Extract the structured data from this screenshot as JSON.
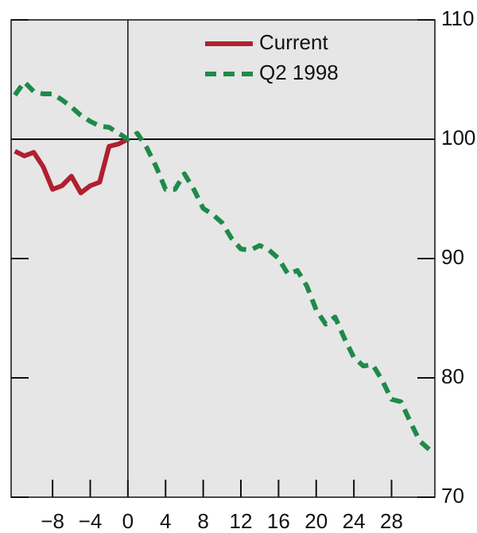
{
  "chart_data": {
    "type": "line",
    "x": [
      -12,
      -11,
      -10,
      -9,
      -8,
      -7,
      -6,
      -5,
      -4,
      -3,
      -2,
      -1,
      0,
      1,
      2,
      3,
      4,
      5,
      6,
      7,
      8,
      9,
      10,
      11,
      12,
      13,
      14,
      15,
      16,
      17,
      18,
      19,
      20,
      21,
      22,
      23,
      24,
      25,
      26,
      27,
      28,
      29,
      30,
      31,
      32
    ],
    "series": [
      {
        "name": "Current",
        "color": "#b0202e",
        "dash": false,
        "values": [
          99.0,
          98.6,
          98.9,
          97.7,
          95.8,
          96.1,
          96.9,
          95.5,
          96.1,
          96.4,
          99.4,
          99.6,
          100.0,
          null,
          null,
          null,
          null,
          null,
          null,
          null,
          null,
          null,
          null,
          null,
          null,
          null,
          null,
          null,
          null,
          null,
          null,
          null,
          null,
          null,
          null,
          null,
          null,
          null,
          null,
          null,
          null,
          null,
          null,
          null,
          null
        ]
      },
      {
        "name": "Q2 1998",
        "color": "#1e8a4a",
        "dash": true,
        "values": [
          103.7,
          104.8,
          104.0,
          103.8,
          103.8,
          103.3,
          102.7,
          102.0,
          101.5,
          101.1,
          101.0,
          100.5,
          100.0,
          100.5,
          99.3,
          97.7,
          95.8,
          95.8,
          97.1,
          95.8,
          94.2,
          93.7,
          93.0,
          91.7,
          90.8,
          90.7,
          91.1,
          90.7,
          90.0,
          88.7,
          89.0,
          87.7,
          85.7,
          84.5,
          85.1,
          83.3,
          81.7,
          81.0,
          81.1,
          79.8,
          78.2,
          78.0,
          76.3,
          74.7,
          74.0
        ]
      }
    ],
    "xlim": [
      -12.4,
      32.6
    ],
    "xticks": [
      {
        "value": -8,
        "label": "−8"
      },
      {
        "value": -4,
        "label": "−4"
      },
      0,
      4,
      8,
      12,
      16,
      20,
      24,
      28
    ],
    "ylim": [
      70,
      110
    ],
    "yticks": [
      70,
      80,
      90,
      100,
      110
    ],
    "reference_y": 100,
    "reference_x": 0,
    "background": "#e6e6e6"
  }
}
